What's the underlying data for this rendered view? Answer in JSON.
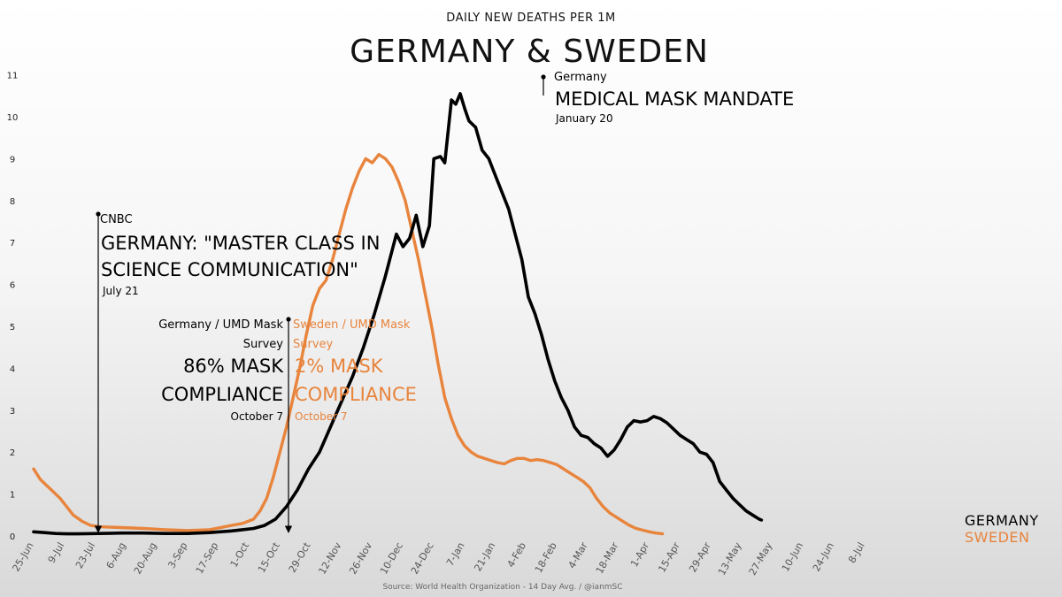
{
  "chart_data": {
    "type": "line",
    "subtitle": "DAILY NEW DEATHS PER 1M",
    "title": "GERMANY & SWEDEN",
    "source": "Source: World Health Organization - 14 Day Avg.  / @ianmSC",
    "ylim": [
      0,
      11
    ],
    "yticks": [
      "0",
      "1",
      "2",
      "3",
      "4",
      "5",
      "6",
      "7",
      "8",
      "9",
      "10",
      "11"
    ],
    "xticks": [
      "25-Jun",
      "9-Jul",
      "23-Jul",
      "6-Aug",
      "20-Aug",
      "3-Sep",
      "17-Sep",
      "1-Oct",
      "15-Oct",
      "29-Oct",
      "12-Nov",
      "26-Nov",
      "10-Dec",
      "24-Dec",
      "7-Jan",
      "21-Jan",
      "4-Feb",
      "18-Feb",
      "4-Mar",
      "18-Mar",
      "1-Apr",
      "15-Apr",
      "29-Apr",
      "13-May",
      "27-May",
      "10-Jun",
      "24-Jun",
      "8-Jul"
    ],
    "grid": false,
    "series": [
      {
        "name": "GERMANY",
        "color": "#000000",
        "points": [
          [
            0,
            0.1
          ],
          [
            5,
            0.08
          ],
          [
            10,
            0.06
          ],
          [
            15,
            0.05
          ],
          [
            20,
            0.05
          ],
          [
            30,
            0.06
          ],
          [
            40,
            0.07
          ],
          [
            50,
            0.07
          ],
          [
            60,
            0.06
          ],
          [
            70,
            0.06
          ],
          [
            80,
            0.08
          ],
          [
            90,
            0.12
          ],
          [
            95,
            0.15
          ],
          [
            100,
            0.18
          ],
          [
            105,
            0.25
          ],
          [
            110,
            0.4
          ],
          [
            115,
            0.7
          ],
          [
            120,
            1.1
          ],
          [
            125,
            1.6
          ],
          [
            130,
            2.0
          ],
          [
            135,
            2.6
          ],
          [
            140,
            3.2
          ],
          [
            145,
            3.8
          ],
          [
            150,
            4.5
          ],
          [
            155,
            5.3
          ],
          [
            160,
            6.2
          ],
          [
            165,
            7.2
          ],
          [
            168,
            6.9
          ],
          [
            171,
            7.1
          ],
          [
            174,
            7.65
          ],
          [
            177,
            6.9
          ],
          [
            180,
            7.4
          ],
          [
            182,
            9.0
          ],
          [
            185,
            9.05
          ],
          [
            187,
            8.9
          ],
          [
            190,
            10.4
          ],
          [
            192,
            10.3
          ],
          [
            194,
            10.55
          ],
          [
            196,
            10.2
          ],
          [
            198,
            9.9
          ],
          [
            201,
            9.75
          ],
          [
            204,
            9.2
          ],
          [
            207,
            9.0
          ],
          [
            210,
            8.6
          ],
          [
            213,
            8.2
          ],
          [
            216,
            7.8
          ],
          [
            219,
            7.2
          ],
          [
            222,
            6.6
          ],
          [
            225,
            5.7
          ],
          [
            228,
            5.3
          ],
          [
            231,
            4.8
          ],
          [
            234,
            4.2
          ],
          [
            237,
            3.7
          ],
          [
            240,
            3.3
          ],
          [
            243,
            3.0
          ],
          [
            246,
            2.6
          ],
          [
            249,
            2.4
          ],
          [
            252,
            2.35
          ],
          [
            255,
            2.2
          ],
          [
            258,
            2.1
          ],
          [
            261,
            1.9
          ],
          [
            264,
            2.05
          ],
          [
            267,
            2.3
          ],
          [
            270,
            2.6
          ],
          [
            273,
            2.75
          ],
          [
            276,
            2.72
          ],
          [
            279,
            2.75
          ],
          [
            282,
            2.85
          ],
          [
            285,
            2.8
          ],
          [
            288,
            2.7
          ],
          [
            291,
            2.55
          ],
          [
            294,
            2.4
          ],
          [
            297,
            2.3
          ],
          [
            300,
            2.2
          ],
          [
            303,
            2.0
          ],
          [
            306,
            1.95
          ],
          [
            309,
            1.75
          ],
          [
            312,
            1.3
          ],
          [
            315,
            1.1
          ],
          [
            318,
            0.9
          ],
          [
            321,
            0.75
          ],
          [
            324,
            0.6
          ],
          [
            327,
            0.5
          ],
          [
            330,
            0.4
          ],
          [
            331,
            0.38
          ]
        ]
      },
      {
        "name": "SWEDEN",
        "color": "#E8843C",
        "points": [
          [
            0,
            1.6
          ],
          [
            3,
            1.35
          ],
          [
            6,
            1.2
          ],
          [
            9,
            1.05
          ],
          [
            12,
            0.9
          ],
          [
            15,
            0.7
          ],
          [
            18,
            0.5
          ],
          [
            22,
            0.35
          ],
          [
            26,
            0.25
          ],
          [
            30,
            0.22
          ],
          [
            40,
            0.2
          ],
          [
            50,
            0.18
          ],
          [
            60,
            0.15
          ],
          [
            70,
            0.13
          ],
          [
            80,
            0.15
          ],
          [
            90,
            0.25
          ],
          [
            95,
            0.3
          ],
          [
            100,
            0.4
          ],
          [
            103,
            0.6
          ],
          [
            106,
            0.9
          ],
          [
            109,
            1.4
          ],
          [
            112,
            2.0
          ],
          [
            115,
            2.6
          ],
          [
            118,
            3.3
          ],
          [
            121,
            4.0
          ],
          [
            124,
            4.8
          ],
          [
            127,
            5.5
          ],
          [
            130,
            5.9
          ],
          [
            133,
            6.1
          ],
          [
            136,
            6.6
          ],
          [
            139,
            7.2
          ],
          [
            142,
            7.8
          ],
          [
            145,
            8.3
          ],
          [
            148,
            8.7
          ],
          [
            151,
            9.0
          ],
          [
            154,
            8.9
          ],
          [
            157,
            9.1
          ],
          [
            160,
            9.0
          ],
          [
            163,
            8.8
          ],
          [
            166,
            8.45
          ],
          [
            169,
            8.0
          ],
          [
            172,
            7.3
          ],
          [
            175,
            6.6
          ],
          [
            178,
            5.8
          ],
          [
            181,
            5.0
          ],
          [
            184,
            4.1
          ],
          [
            187,
            3.3
          ],
          [
            190,
            2.8
          ],
          [
            193,
            2.4
          ],
          [
            196,
            2.15
          ],
          [
            199,
            2.0
          ],
          [
            202,
            1.9
          ],
          [
            205,
            1.85
          ],
          [
            208,
            1.8
          ],
          [
            211,
            1.75
          ],
          [
            214,
            1.72
          ],
          [
            217,
            1.8
          ],
          [
            220,
            1.85
          ],
          [
            223,
            1.85
          ],
          [
            226,
            1.8
          ],
          [
            229,
            1.82
          ],
          [
            232,
            1.8
          ],
          [
            235,
            1.75
          ],
          [
            238,
            1.7
          ],
          [
            241,
            1.6
          ],
          [
            244,
            1.5
          ],
          [
            247,
            1.4
          ],
          [
            250,
            1.3
          ],
          [
            253,
            1.15
          ],
          [
            256,
            0.9
          ],
          [
            259,
            0.7
          ],
          [
            262,
            0.55
          ],
          [
            265,
            0.45
          ],
          [
            268,
            0.35
          ],
          [
            271,
            0.25
          ],
          [
            274,
            0.18
          ],
          [
            277,
            0.14
          ],
          [
            280,
            0.1
          ],
          [
            283,
            0.07
          ],
          [
            286,
            0.05
          ]
        ]
      }
    ],
    "annotations": [
      {
        "lines": [
          "CNBC"
        ],
        "big": [
          "GERMANY: \"MASTER CLASS IN",
          "SCIENCE COMMUNICATION\""
        ],
        "date": "July 21",
        "color": "#000000"
      },
      {
        "lines": [
          "Germany / UMD Mask",
          "Survey"
        ],
        "big": [
          "86% MASK",
          "COMPLIANCE"
        ],
        "date": "October 7",
        "color": "#000000"
      },
      {
        "lines": [
          "Sweden / UMD Mask",
          "Survey"
        ],
        "big": [
          "2% MASK",
          "COMPLIANCE"
        ],
        "date": "October 7",
        "color": "#E8843C"
      },
      {
        "lines": [
          "Germany"
        ],
        "big": [
          "MEDICAL MASK MANDATE"
        ],
        "date": "January 20",
        "color": "#000000"
      }
    ]
  }
}
